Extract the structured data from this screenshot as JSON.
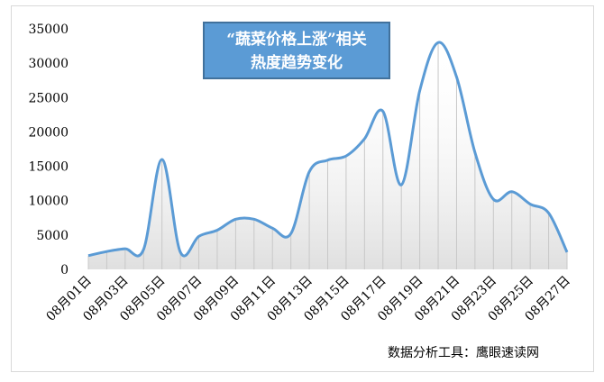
{
  "chart_data": {
    "type": "area",
    "title_lines": [
      "“蔬菜价格上涨”相关",
      "热度趋势变化"
    ],
    "categories": [
      "08月01日",
      "08月02日",
      "08月03日",
      "08月04日",
      "08月05日",
      "08月06日",
      "08月07日",
      "08月08日",
      "08月09日",
      "08月10日",
      "08月11日",
      "08月12日",
      "08月13日",
      "08月14日",
      "08月15日",
      "08月16日",
      "08月17日",
      "08月18日",
      "08月19日",
      "08月20日",
      "08月21日",
      "08月22日",
      "08月23日",
      "08月24日",
      "08月25日",
      "08月26日",
      "08月27日"
    ],
    "tick_labels": [
      "08月01日",
      "08月03日",
      "08月05日",
      "08月07日",
      "08月09日",
      "08月11日",
      "08月13日",
      "08月15日",
      "08月17日",
      "08月19日",
      "08月21日",
      "08月23日",
      "08月25日",
      "08月27日"
    ],
    "values": [
      2000,
      2600,
      3000,
      2900,
      16000,
      2500,
      4800,
      5700,
      7300,
      7300,
      6000,
      5200,
      14200,
      15900,
      16500,
      19000,
      23000,
      12300,
      26000,
      33000,
      28000,
      17000,
      10200,
      11300,
      9500,
      8200,
      2500
    ],
    "ylim": [
      0,
      35000
    ],
    "yticks": [
      0,
      5000,
      10000,
      15000,
      20000,
      25000,
      30000,
      35000
    ],
    "grid": "vertical drop lines",
    "line_color": "#5b9bd5",
    "title_box_color": "#5b9bd5"
  },
  "source_note": "数据分析工具：鹰眼速读网"
}
